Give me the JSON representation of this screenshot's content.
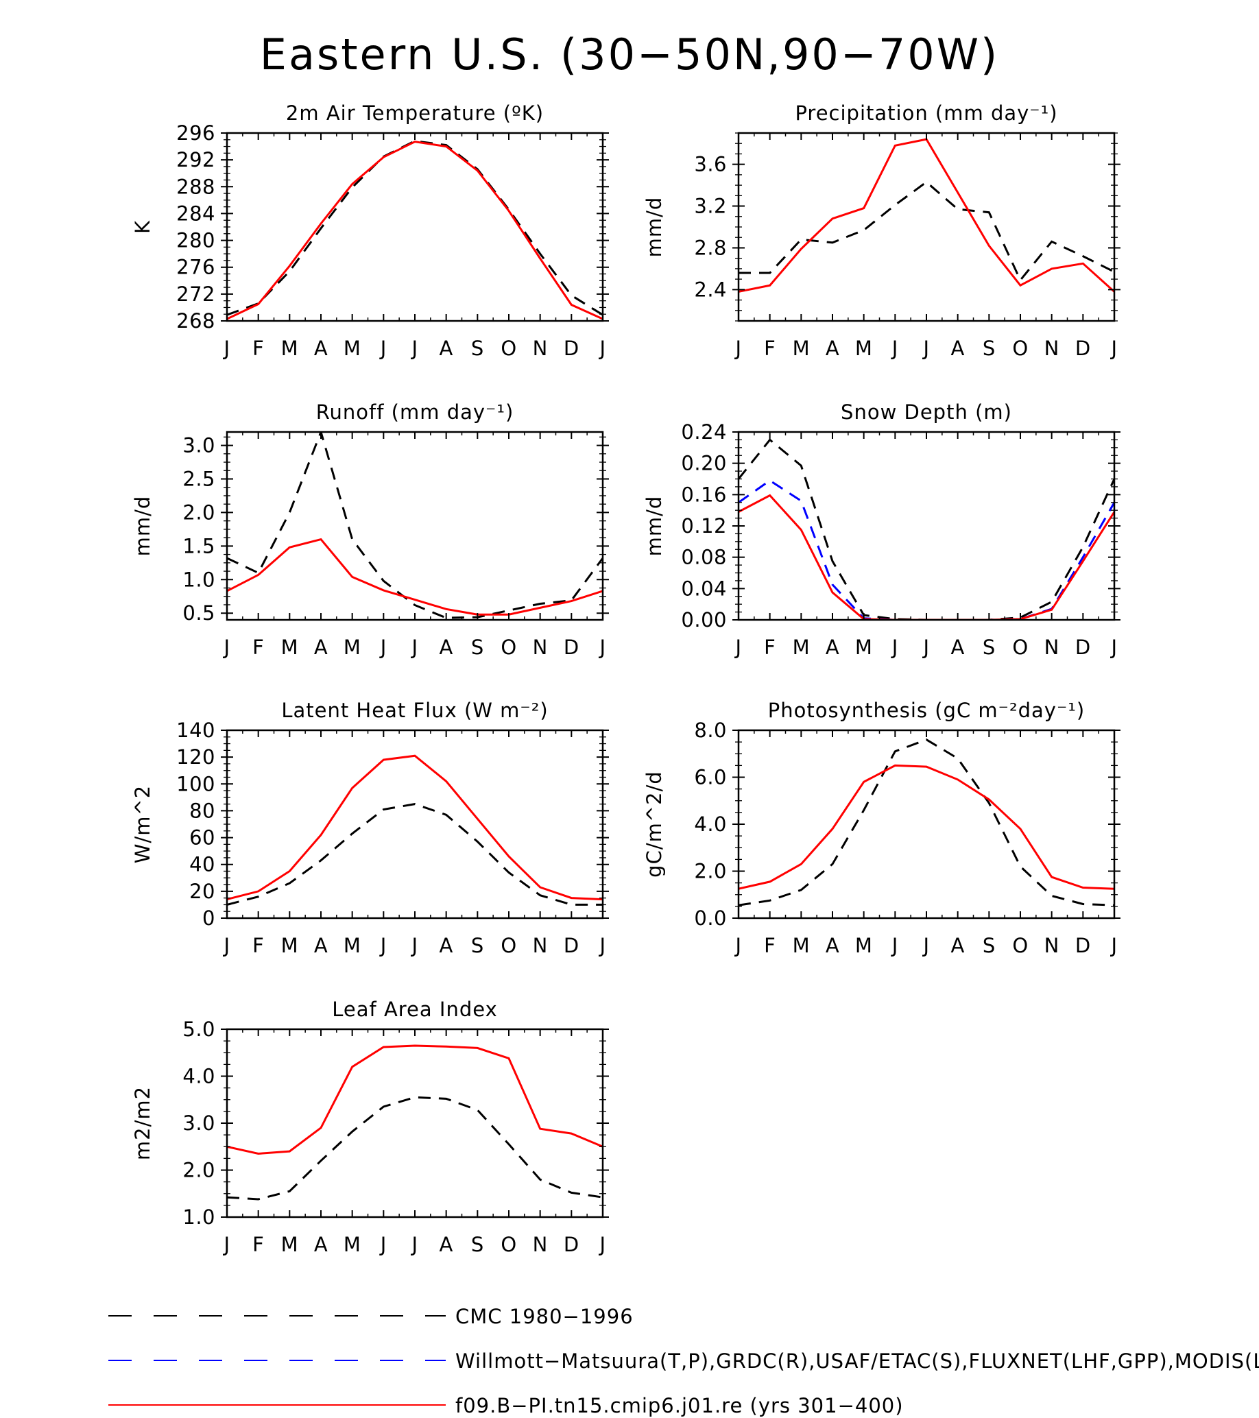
{
  "title": "Eastern U.S. (30−50N,90−70W)",
  "months": [
    "J",
    "F",
    "M",
    "A",
    "M",
    "J",
    "J",
    "A",
    "S",
    "O",
    "N",
    "D",
    "J"
  ],
  "colors": {
    "obs_black": "#000000",
    "obs_blue": "#0000ff",
    "model_red": "#ff0000"
  },
  "legend": [
    {
      "label": "CMC 1980−1996",
      "color": "#000000",
      "style": "dashed"
    },
    {
      "label": "Willmott−Matsuura(T,P),GRDC(R),USAF/ETAC(S),FLUXNET(LHF,GPP),MODIS(LAI)",
      "color": "#0000ff",
      "style": "dashed"
    },
    {
      "label": "f09.B−PI.tn15.cmip6.j01.re (yrs 301−400)",
      "color": "#ff0000",
      "style": "solid"
    }
  ],
  "chart_data": [
    {
      "type": "line",
      "title": "2m Air Temperature (ºK)",
      "ylabel": "K",
      "ylim": [
        268,
        296
      ],
      "yticks": [
        268,
        272,
        276,
        280,
        284,
        288,
        292,
        296
      ],
      "ytick_labels": [
        "268",
        "272",
        "276",
        "280",
        "284",
        "288",
        "292",
        "296"
      ],
      "series": [
        {
          "legend": 0,
          "values": [
            268.9,
            270.6,
            275.4,
            281.8,
            287.9,
            292.5,
            294.8,
            294.2,
            290.6,
            284.6,
            278.0,
            271.8,
            268.9
          ]
        },
        {
          "legend": 2,
          "values": [
            268.3,
            270.5,
            276.2,
            282.5,
            288.4,
            292.4,
            294.7,
            294.0,
            290.4,
            284.4,
            277.3,
            270.4,
            268.3
          ]
        }
      ]
    },
    {
      "type": "line",
      "title": "Precipitation (mm day⁻¹)",
      "ylabel": "mm/d",
      "ylim": [
        2.1,
        3.9
      ],
      "yticks": [
        2.4,
        2.8,
        3.2,
        3.6
      ],
      "ytick_labels": [
        "2.4",
        "2.8",
        "3.2",
        "3.6"
      ],
      "series": [
        {
          "legend": 0,
          "values": [
            2.56,
            2.56,
            2.88,
            2.85,
            2.97,
            3.21,
            3.43,
            3.17,
            3.14,
            2.49,
            2.86,
            2.72,
            2.57
          ]
        },
        {
          "legend": 2,
          "values": [
            2.38,
            2.44,
            2.79,
            3.08,
            3.18,
            3.78,
            3.84,
            3.33,
            2.82,
            2.44,
            2.6,
            2.65,
            2.38
          ]
        }
      ]
    },
    {
      "type": "line",
      "title": "Runoff (mm day⁻¹)",
      "ylabel": "mm/d",
      "ylim": [
        0.4,
        3.2
      ],
      "yticks": [
        0.5,
        1.0,
        1.5,
        2.0,
        2.5,
        3.0
      ],
      "ytick_labels": [
        "0.5",
        "1.0",
        "1.5",
        "2.0",
        "2.5",
        "3.0"
      ],
      "series": [
        {
          "legend": 0,
          "values": [
            1.32,
            1.1,
            2.0,
            3.2,
            1.6,
            0.98,
            0.62,
            0.43,
            0.44,
            0.54,
            0.64,
            0.69,
            1.32
          ]
        },
        {
          "legend": 2,
          "values": [
            0.83,
            1.07,
            1.48,
            1.6,
            1.04,
            0.84,
            0.7,
            0.56,
            0.48,
            0.48,
            0.58,
            0.68,
            0.83
          ]
        }
      ]
    },
    {
      "type": "line",
      "title": "Snow Depth (m)",
      "ylabel": "mm/d",
      "ylim": [
        0.0,
        0.24
      ],
      "yticks": [
        0.0,
        0.04,
        0.08,
        0.12,
        0.16,
        0.2,
        0.24
      ],
      "ytick_labels": [
        "0.00",
        "0.04",
        "0.08",
        "0.12",
        "0.16",
        "0.20",
        "0.24"
      ],
      "series": [
        {
          "legend": 0,
          "values": [
            0.18,
            0.23,
            0.197,
            0.075,
            0.006,
            0.001,
            0.0,
            0.0,
            0.0,
            0.003,
            0.023,
            0.093,
            0.18
          ]
        },
        {
          "legend": 1,
          "values": [
            0.15,
            0.178,
            0.152,
            0.045,
            0.002,
            0.0,
            0.0,
            0.0,
            0.0,
            0.001,
            0.014,
            0.08,
            0.15
          ]
        },
        {
          "legend": 2,
          "values": [
            0.138,
            0.159,
            0.115,
            0.035,
            0.001,
            0.0,
            0.0,
            0.0,
            0.0,
            0.001,
            0.013,
            0.075,
            0.138
          ]
        }
      ]
    },
    {
      "type": "line",
      "title": "Latent Heat Flux (W m⁻²)",
      "ylabel": "W/m^2",
      "ylim": [
        0,
        140
      ],
      "yticks": [
        0,
        20,
        40,
        60,
        80,
        100,
        120,
        140
      ],
      "ytick_labels": [
        "0",
        "20",
        "40",
        "60",
        "80",
        "100",
        "120",
        "140"
      ],
      "series": [
        {
          "legend": 0,
          "values": [
            10,
            16,
            26,
            43,
            63,
            81,
            85,
            77,
            57,
            34,
            17,
            10,
            10
          ]
        },
        {
          "legend": 2,
          "values": [
            14,
            20,
            35,
            62,
            97,
            118,
            121,
            102,
            74,
            46,
            23,
            15,
            14
          ]
        }
      ]
    },
    {
      "type": "line",
      "title": "Photosynthesis (gC m⁻²day⁻¹)",
      "ylabel": "gC/m^2/d",
      "ylim": [
        0.0,
        8.0
      ],
      "yticks": [
        0.0,
        2.0,
        4.0,
        6.0,
        8.0
      ],
      "ytick_labels": [
        "0.0",
        "2.0",
        "4.0",
        "6.0",
        "8.0"
      ],
      "series": [
        {
          "legend": 0,
          "values": [
            0.55,
            0.75,
            1.2,
            2.3,
            4.6,
            7.1,
            7.6,
            6.8,
            4.9,
            2.2,
            0.95,
            0.6,
            0.55
          ]
        },
        {
          "legend": 2,
          "values": [
            1.25,
            1.55,
            2.3,
            3.8,
            5.8,
            6.5,
            6.45,
            5.9,
            5.05,
            3.8,
            1.75,
            1.3,
            1.25
          ]
        }
      ]
    },
    {
      "type": "line",
      "title": "Leaf Area Index",
      "ylabel": "m2/m2",
      "ylim": [
        1.0,
        5.0
      ],
      "yticks": [
        1.0,
        2.0,
        3.0,
        4.0,
        5.0
      ],
      "ytick_labels": [
        "1.0",
        "2.0",
        "3.0",
        "4.0",
        "5.0"
      ],
      "series": [
        {
          "legend": 0,
          "values": [
            1.42,
            1.38,
            1.55,
            2.2,
            2.82,
            3.35,
            3.55,
            3.52,
            3.28,
            2.55,
            1.8,
            1.52,
            1.42
          ]
        },
        {
          "legend": 2,
          "values": [
            2.5,
            2.35,
            2.4,
            2.9,
            4.2,
            4.62,
            4.65,
            4.63,
            4.6,
            4.38,
            2.88,
            2.78,
            2.5
          ]
        }
      ]
    }
  ]
}
